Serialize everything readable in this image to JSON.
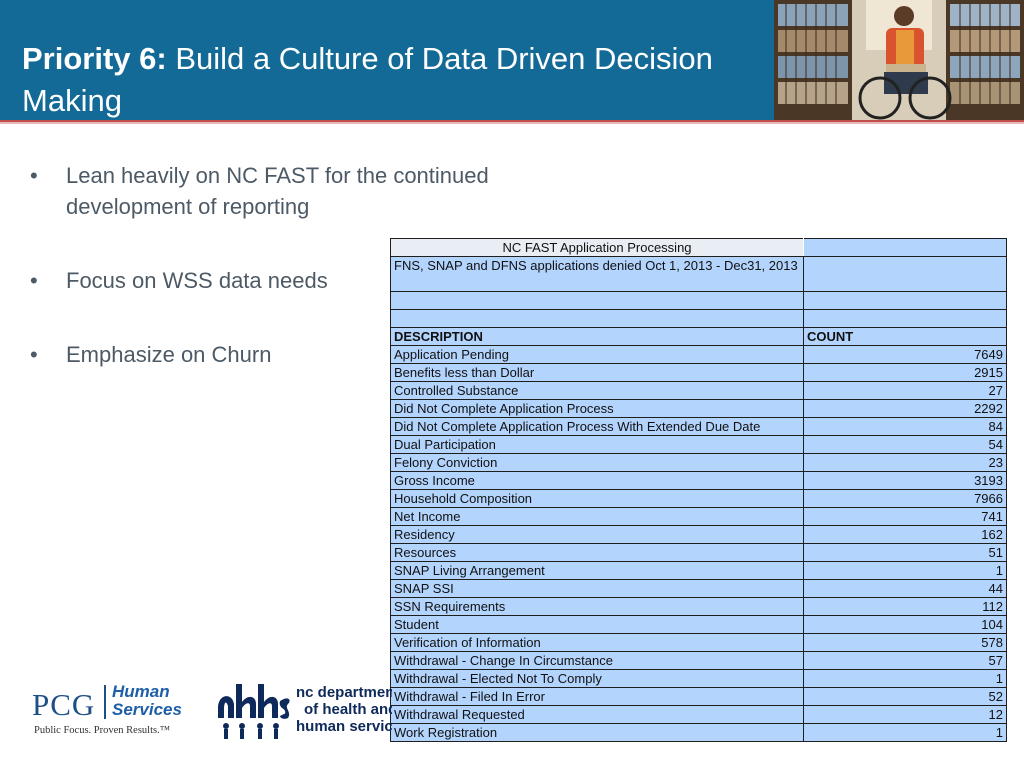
{
  "header": {
    "title_bold": "Priority 6:",
    "title_rest": " Build a Culture of Data Driven Decision Making"
  },
  "bullets": [
    "Lean heavily on NC FAST for the continued development of reporting",
    "Focus on WSS data needs",
    "Emphasize on Churn"
  ],
  "table": {
    "title": "NC FAST Application Processing",
    "subtitle": "FNS, SNAP and DFNS applications denied Oct 1, 2013 - Dec31, 2013",
    "columns": [
      "DESCRIPTION",
      "COUNT"
    ],
    "rows": [
      {
        "description": "Application Pending",
        "count": "7649"
      },
      {
        "description": "Benefits less than Dollar",
        "count": "2915"
      },
      {
        "description": "Controlled Substance",
        "count": "27"
      },
      {
        "description": "Did Not Complete Application Process",
        "count": "2292"
      },
      {
        "description": "Did Not Complete Application Process With Extended Due Date",
        "count": "84"
      },
      {
        "description": "Dual Participation",
        "count": "54"
      },
      {
        "description": "Felony Conviction",
        "count": "23"
      },
      {
        "description": "Gross Income",
        "count": "3193"
      },
      {
        "description": "Household Composition",
        "count": "7966"
      },
      {
        "description": "Net Income",
        "count": "741"
      },
      {
        "description": "Residency",
        "count": "162"
      },
      {
        "description": "Resources",
        "count": "51"
      },
      {
        "description": "SNAP Living Arrangement",
        "count": "1"
      },
      {
        "description": "SNAP SSI",
        "count": "44"
      },
      {
        "description": "SSN Requirements",
        "count": "112"
      },
      {
        "description": "Student",
        "count": "104"
      },
      {
        "description": "Verification of Information",
        "count": "578"
      },
      {
        "description": "Withdrawal - Change In Circumstance",
        "count": "57"
      },
      {
        "description": "Withdrawal - Elected Not To Comply",
        "count": "1"
      },
      {
        "description": "Withdrawal - Filed In Error",
        "count": "52"
      },
      {
        "description": "Withdrawal Requested",
        "count": "12"
      },
      {
        "description": "Work Registration",
        "count": "1"
      }
    ]
  },
  "footer": {
    "pcg_name": "PCG",
    "pcg_human": "Human",
    "pcg_services": "Services",
    "pcg_tagline": "Public Focus. Proven Results.™",
    "dhhs_lines": [
      "nc department",
      "of health and",
      "human services"
    ]
  },
  "colors": {
    "header_bg": "#136a96",
    "table_cell": "#b3d4fd",
    "accent_rule": "#c0504d"
  },
  "icons": [
    "bullet-dot",
    "library-photo",
    "dhhs-logo-mark"
  ]
}
